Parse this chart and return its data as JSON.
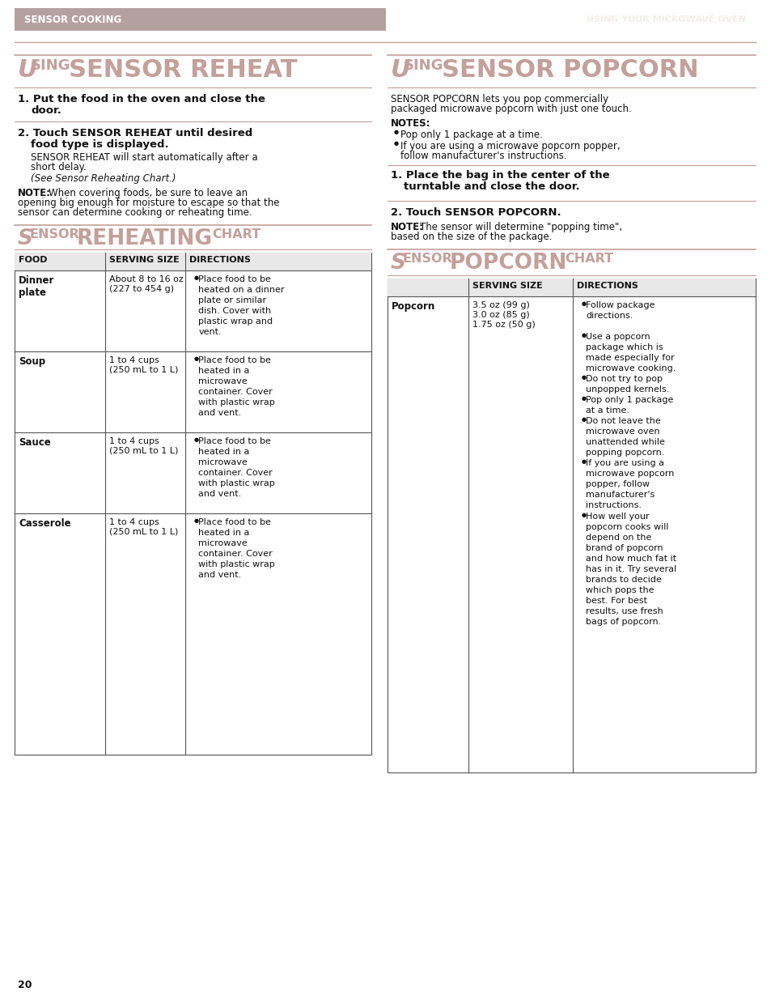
{
  "page_bg": "#ffffff",
  "header_bg": "#b5a0a0",
  "header_text": "SENSOR COOKING",
  "header_right_text": "USING YOUR MICROWAVE OVEN",
  "header_right_color": "#f5ede8",
  "title_color": "#c4a09a",
  "left_title": "Using Sensor Reheat",
  "right_title": "Using Sensor Popcorn",
  "section_title_left": "Sensor reheating chart",
  "section_title_right": "Sensor popcorn chart",
  "line_color": "#c4a09a",
  "table_border_color": "#888888",
  "page_number": "20"
}
